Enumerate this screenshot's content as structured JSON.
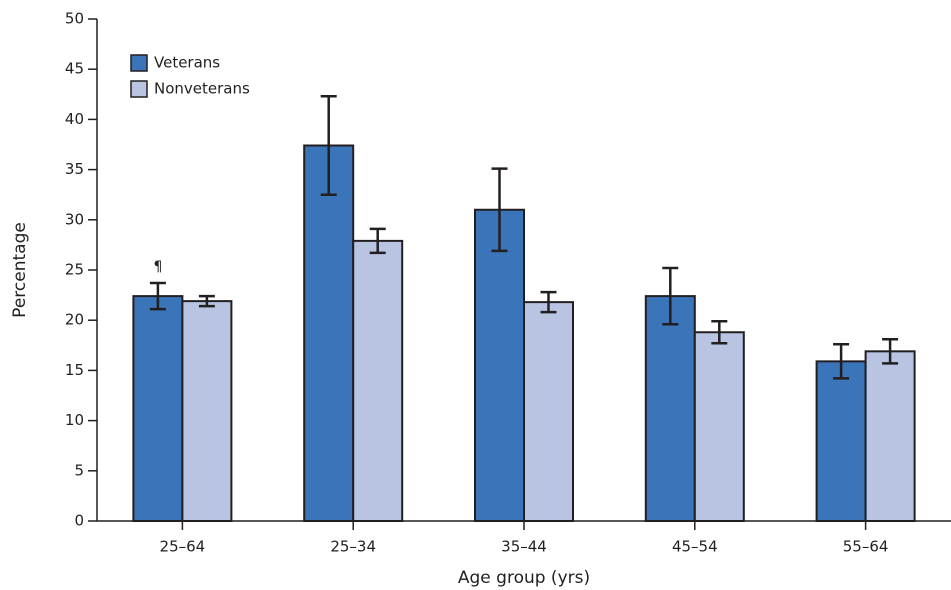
{
  "chart_data": {
    "type": "bar",
    "x_label": "Age group (yrs)",
    "y_label": "Percentage",
    "categories": [
      "25–64",
      "25–34",
      "35–44",
      "45–54",
      "55–64"
    ],
    "series": [
      {
        "name": "Veterans",
        "color": "#3a74b9",
        "values": [
          22.4,
          37.4,
          31.0,
          22.4,
          15.9
        ],
        "errors": [
          1.3,
          4.9,
          4.1,
          2.8,
          1.7
        ]
      },
      {
        "name": "Nonveterans",
        "color": "#b8c4e2",
        "values": [
          21.9,
          27.9,
          21.8,
          18.8,
          16.9
        ],
        "errors": [
          0.5,
          1.2,
          1.0,
          1.1,
          1.2
        ]
      }
    ],
    "annotations": [
      "¶"
    ],
    "ylim": [
      0,
      50
    ],
    "yticks": [
      0,
      5,
      10,
      15,
      20,
      25,
      30,
      35,
      40,
      45,
      50
    ],
    "legend": "top-left",
    "grid": false
  }
}
